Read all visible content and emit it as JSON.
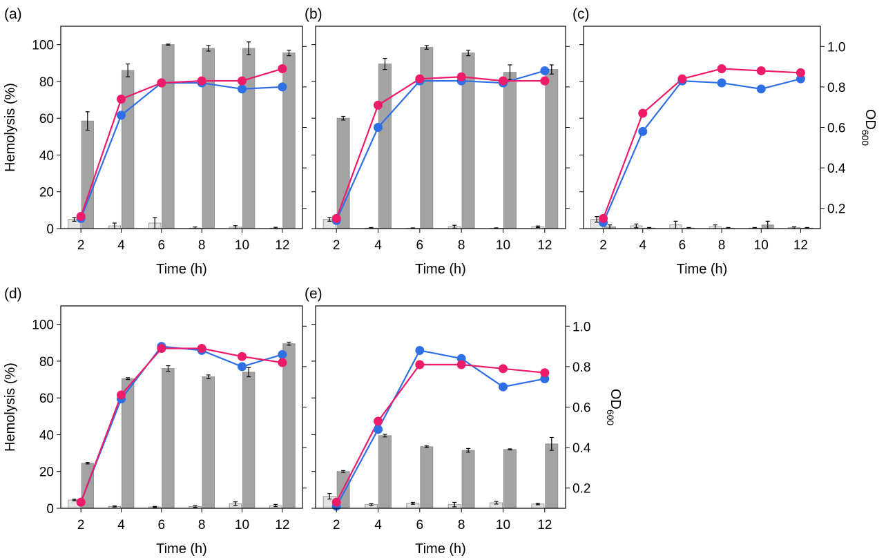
{
  "figure": {
    "colors": {
      "light_bar": "#e3e3e3",
      "dark_bar": "#a3a3a3",
      "bar_edge": "#8a8a8a",
      "blue_series": "#2f6fe6",
      "pink_series": "#ee1a6a"
    }
  },
  "chart_data": [
    {
      "type": "bar",
      "panel": "(a)",
      "title": "",
      "xlabel": "Time (h)",
      "ylabel": "Hemolysis (%)",
      "y2label": "",
      "categories": [
        2,
        4,
        6,
        8,
        10,
        12
      ],
      "ylim": [
        0,
        110
      ],
      "yticks": [
        0,
        20,
        40,
        60,
        80,
        100
      ],
      "y2lim": [
        0.1,
        1.1
      ],
      "y2ticks": [
        0.2,
        0.4,
        0.6,
        0.8,
        1.0
      ],
      "y2tick_labels": false,
      "bars": [
        {
          "values": [
            5,
            1.5,
            3,
            0.3,
            0.8,
            0.3
          ],
          "errors": [
            1,
            1.5,
            3,
            0.6,
            0.8,
            0.4
          ],
          "color": "light"
        },
        {
          "values": [
            58.5,
            86,
            100,
            98,
            98,
            95.5
          ],
          "errors": [
            5,
            3.5,
            0.3,
            1.5,
            3.5,
            1.5
          ],
          "color": "dark"
        }
      ],
      "lines": [
        {
          "color": "blue",
          "values": [
            0.15,
            0.66,
            0.82,
            0.82,
            0.79,
            0.8
          ]
        },
        {
          "color": "pink",
          "values": [
            0.16,
            0.74,
            0.82,
            0.83,
            0.83,
            0.89
          ]
        }
      ],
      "grid": false
    },
    {
      "type": "bar",
      "panel": "(b)",
      "title": "",
      "xlabel": "Time (h)",
      "ylabel": "",
      "y2label": "",
      "categories": [
        2,
        4,
        6,
        8,
        10,
        12
      ],
      "ylim": [
        0,
        110
      ],
      "yticks": [
        0,
        20,
        40,
        60,
        80,
        100
      ],
      "ytick_labels": false,
      "y2lim": [
        0.1,
        1.1
      ],
      "y2ticks": [
        0.2,
        0.4,
        0.6,
        0.8,
        1.0
      ],
      "y2tick_labels": false,
      "bars": [
        {
          "values": [
            5,
            0.3,
            0.2,
            1,
            0.2,
            1
          ],
          "errors": [
            1,
            0.3,
            0.2,
            0.8,
            0.2,
            0.4
          ],
          "color": "light"
        },
        {
          "values": [
            60,
            89.5,
            98.5,
            95.5,
            85,
            86.5
          ],
          "errors": [
            1,
            3,
            1,
            1.5,
            4,
            2.5
          ],
          "color": "dark"
        }
      ],
      "lines": [
        {
          "color": "blue",
          "values": [
            0.14,
            0.6,
            0.83,
            0.83,
            0.82,
            0.88
          ]
        },
        {
          "color": "pink",
          "values": [
            0.15,
            0.71,
            0.84,
            0.85,
            0.83,
            0.83
          ]
        }
      ],
      "grid": false
    },
    {
      "type": "bar",
      "panel": "(c)",
      "title": "",
      "xlabel": "Time (h)",
      "ylabel": "",
      "y2label": "OD600",
      "y2label_main": "OD",
      "y2label_sub": "600",
      "categories": [
        2,
        4,
        6,
        8,
        10,
        12
      ],
      "ylim": [
        0,
        110
      ],
      "yticks": [
        0,
        20,
        40,
        60,
        80,
        100
      ],
      "ytick_labels": false,
      "y2lim": [
        0.1,
        1.1
      ],
      "y2ticks": [
        0.2,
        0.4,
        0.6,
        0.8,
        1.0
      ],
      "y2tick_labels": true,
      "bars": [
        {
          "values": [
            5,
            1.5,
            2,
            1,
            0.3,
            0.5
          ],
          "errors": [
            1.5,
            1,
            2,
            1,
            0.3,
            0.5
          ],
          "color": "light"
        },
        {
          "values": [
            1,
            0.3,
            0.3,
            0.3,
            2,
            0.3
          ],
          "errors": [
            1,
            0.3,
            0.3,
            0.3,
            2,
            0.3
          ],
          "color": "dark"
        }
      ],
      "lines": [
        {
          "color": "blue",
          "values": [
            0.13,
            0.58,
            0.83,
            0.82,
            0.79,
            0.84
          ]
        },
        {
          "color": "pink",
          "values": [
            0.15,
            0.67,
            0.84,
            0.89,
            0.88,
            0.87
          ]
        }
      ],
      "grid": false
    },
    {
      "type": "bar",
      "panel": "(d)",
      "title": "",
      "xlabel": "Time (h)",
      "ylabel": "Hemolysis (%)",
      "y2label": "",
      "categories": [
        2,
        4,
        6,
        8,
        10,
        12
      ],
      "ylim": [
        0,
        110
      ],
      "yticks": [
        0,
        20,
        40,
        60,
        80,
        100
      ],
      "y2lim": [
        0.1,
        1.1
      ],
      "y2ticks": [
        0.2,
        0.4,
        0.6,
        0.8,
        1.0
      ],
      "y2tick_labels": false,
      "bars": [
        {
          "values": [
            4.5,
            1,
            0.7,
            1,
            2.5,
            1.5
          ],
          "errors": [
            0.4,
            0.3,
            0.3,
            0.5,
            1,
            0.6
          ],
          "color": "light"
        },
        {
          "values": [
            24.5,
            70.5,
            76,
            71.5,
            74,
            89.5
          ],
          "errors": [
            0.4,
            0.5,
            1.5,
            1,
            2.5,
            0.8
          ],
          "color": "dark"
        }
      ],
      "lines": [
        {
          "color": "blue",
          "values": [
            0.13,
            0.64,
            0.9,
            0.88,
            0.8,
            0.86
          ]
        },
        {
          "color": "pink",
          "values": [
            0.13,
            0.66,
            0.89,
            0.89,
            0.85,
            0.82
          ]
        }
      ],
      "grid": false
    },
    {
      "type": "bar",
      "panel": "(e)",
      "title": "",
      "xlabel": "Time (h)",
      "ylabel": "",
      "y2label": "OD600",
      "y2label_main": "OD",
      "y2label_sub": "600",
      "categories": [
        2,
        4,
        6,
        8,
        10,
        12
      ],
      "ylim": [
        0,
        110
      ],
      "yticks": [
        0,
        20,
        40,
        60,
        80,
        100
      ],
      "ytick_labels": false,
      "y2lim": [
        0.1,
        1.1
      ],
      "y2ticks": [
        0.2,
        0.4,
        0.6,
        0.8,
        1.0
      ],
      "y2tick_labels": true,
      "bars": [
        {
          "values": [
            6.5,
            2,
            2.7,
            2,
            3,
            2.3
          ],
          "errors": [
            1.5,
            0.5,
            0.5,
            1.2,
            0.7,
            0.4
          ],
          "color": "light"
        },
        {
          "values": [
            20,
            39.5,
            33.5,
            31.5,
            32,
            35
          ],
          "errors": [
            0.5,
            0.7,
            0.4,
            1,
            0.3,
            3.5
          ],
          "color": "dark"
        }
      ],
      "lines": [
        {
          "color": "blue",
          "values": [
            0.11,
            0.49,
            0.88,
            0.84,
            0.7,
            0.74
          ]
        },
        {
          "color": "pink",
          "values": [
            0.13,
            0.53,
            0.81,
            0.81,
            0.79,
            0.77
          ]
        }
      ],
      "grid": false
    }
  ]
}
